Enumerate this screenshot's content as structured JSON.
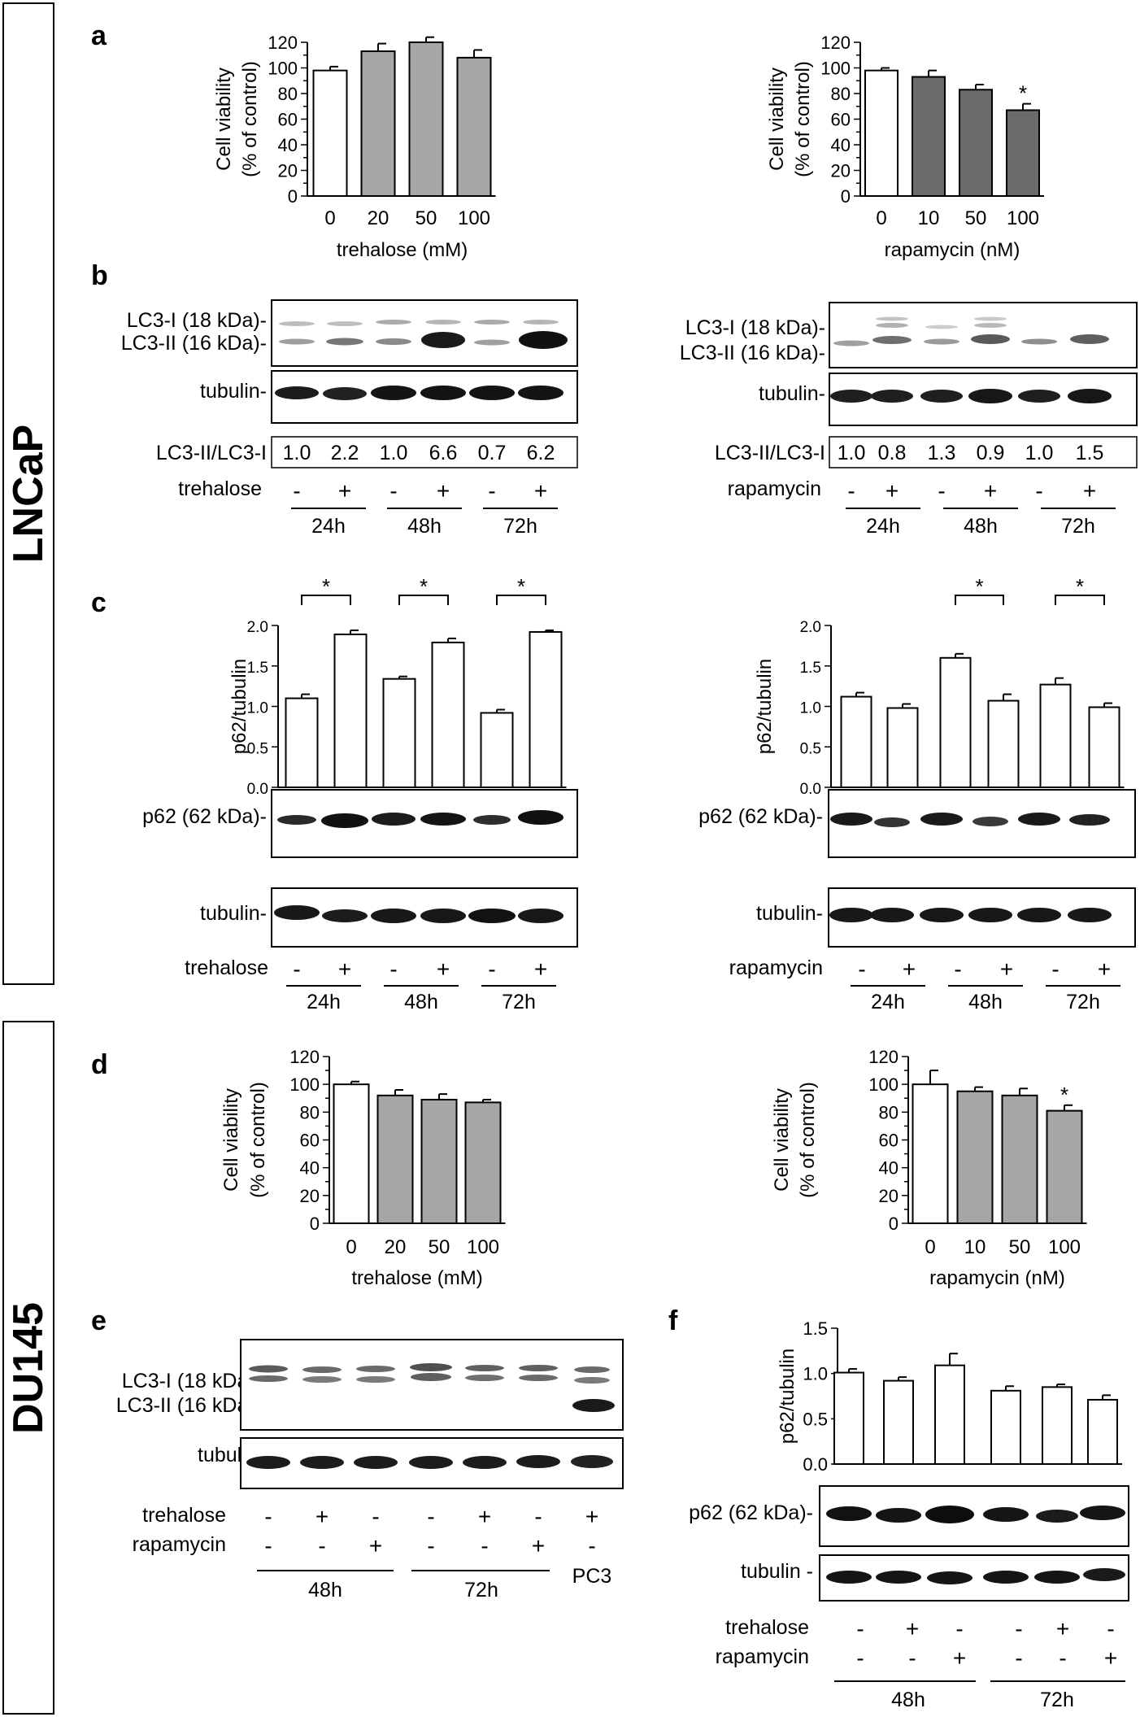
{
  "figure": {
    "rows": {
      "top": "LNCaP",
      "bottom": "DU145"
    },
    "panels": {
      "a": "a",
      "b": "b",
      "c": "c",
      "d": "d",
      "e": "e",
      "f": "f"
    },
    "colors": {
      "control_fill": "#ffffff",
      "trehalose_fill": "#a6a6a6",
      "rapamycin_fill_lncap": "#6b6b6b",
      "rapamycin_fill_du145": "#a6a6a6"
    },
    "blot_labels": {
      "lc3_i": "LC3-I  (18 kDa)-",
      "lc3_ii": "LC3-II (16 kDa)-",
      "tubulin": "tubulin-",
      "tubulin_f": "tubulin -",
      "p62": "p62 (62 kDa)-",
      "ratio_label": "LC3-II/LC3-I"
    },
    "treatments": {
      "trehalose": "trehalose",
      "rapamycin": "rapamycin"
    },
    "timepoints": {
      "t24": "24h",
      "t48": "48h",
      "t72": "72h",
      "pc3": "PC3"
    },
    "signs": {
      "minus": "-",
      "plus": "+"
    },
    "sig_marker": "*",
    "ratios": {
      "b_trehalose": [
        "1.0",
        "2.2",
        "1.0",
        "6.6",
        "0.7",
        "6.2"
      ],
      "b_rapamycin": [
        "1.0",
        "0.8",
        "1.3",
        "0.9",
        "1.0",
        "1.5"
      ]
    }
  },
  "chart_data": [
    {
      "id": "a-trehalose",
      "panel": "a",
      "type": "bar",
      "title": "",
      "xlabel": "trehalose (mM)",
      "ylabel_1": "Cell viability",
      "ylabel_2": "(% of control)",
      "categories": [
        "0",
        "20",
        "50",
        "100"
      ],
      "values": [
        98,
        113,
        120,
        108
      ],
      "errors": [
        3,
        6,
        4,
        6
      ],
      "ylim": [
        0,
        120
      ],
      "yticks": [
        "0",
        "10",
        "20",
        "30",
        "40",
        "50",
        "60",
        "70",
        "80",
        "90",
        "100",
        "110",
        "120"
      ],
      "tick_precision": 0,
      "significant": []
    },
    {
      "id": "a-rapamycin",
      "panel": "a",
      "type": "bar",
      "title": "",
      "xlabel": "rapamycin (nM)",
      "ylabel_1": "Cell viability",
      "ylabel_2": "(% of control)",
      "categories": [
        "0",
        "10",
        "50",
        "100"
      ],
      "values": [
        98,
        93,
        83,
        67
      ],
      "errors": [
        2,
        5,
        4,
        5
      ],
      "ylim": [
        0,
        120
      ],
      "yticks": [
        "0",
        "10",
        "20",
        "30",
        "40",
        "50",
        "60",
        "70",
        "80",
        "90",
        "100",
        "110",
        "120"
      ],
      "tick_precision": 0,
      "significant": [
        3
      ]
    },
    {
      "id": "c-trehalose",
      "panel": "c",
      "type": "bar",
      "title": "",
      "xlabel": "",
      "ylabel_1": "p62/tubulin",
      "ylabel_2": "",
      "categories": [
        "24h -",
        "24h +",
        "48h -",
        "48h +",
        "72h -",
        "72h +"
      ],
      "values": [
        1.1,
        1.89,
        1.34,
        1.79,
        0.92,
        1.92
      ],
      "errors": [
        0.05,
        0.05,
        0.03,
        0.05,
        0.04,
        0.02
      ],
      "ylim": [
        0,
        2.0
      ],
      "yticks": [
        "0.0",
        "0.5",
        "1.0",
        "1.5",
        "2.0"
      ],
      "tick_precision": 1,
      "comparisons": [
        [
          0,
          1
        ],
        [
          2,
          3
        ],
        [
          4,
          5
        ]
      ]
    },
    {
      "id": "c-rapamycin",
      "panel": "c",
      "type": "bar",
      "title": "",
      "xlabel": "",
      "ylabel_1": "p62/tubulin",
      "ylabel_2": "",
      "categories": [
        "24h -",
        "24h +",
        "48h -",
        "48h +",
        "72h -",
        "72h +"
      ],
      "values": [
        1.12,
        0.98,
        1.6,
        1.07,
        1.27,
        0.99
      ],
      "errors": [
        0.05,
        0.05,
        0.05,
        0.08,
        0.08,
        0.05
      ],
      "ylim": [
        0,
        2.0
      ],
      "yticks": [
        "0.0",
        "0.5",
        "1.0",
        "1.5",
        "2.0"
      ],
      "tick_precision": 1,
      "comparisons": [
        [
          2,
          3
        ],
        [
          4,
          5
        ]
      ]
    },
    {
      "id": "d-trehalose",
      "panel": "d",
      "type": "bar",
      "title": "",
      "xlabel": "trehalose (mM)",
      "ylabel_1": "Cell viability",
      "ylabel_2": "(% of control)",
      "categories": [
        "0",
        "20",
        "50",
        "100"
      ],
      "values": [
        100,
        92,
        89,
        87
      ],
      "errors": [
        2,
        4,
        4,
        2
      ],
      "ylim": [
        0,
        120
      ],
      "yticks": [
        "0",
        "10",
        "20",
        "30",
        "40",
        "50",
        "60",
        "70",
        "80",
        "90",
        "100",
        "110",
        "120"
      ],
      "tick_precision": 0,
      "significant": []
    },
    {
      "id": "d-rapamycin",
      "panel": "d",
      "type": "bar",
      "title": "",
      "xlabel": "rapamycin (nM)",
      "ylabel_1": "Cell viability",
      "ylabel_2": "(% of control)",
      "categories": [
        "0",
        "10",
        "50",
        "100"
      ],
      "values": [
        100,
        95,
        92,
        81
      ],
      "errors": [
        10,
        3,
        5,
        4
      ],
      "ylim": [
        0,
        120
      ],
      "yticks": [
        "0",
        "10",
        "20",
        "30",
        "40",
        "50",
        "60",
        "70",
        "80",
        "90",
        "100",
        "110",
        "120"
      ],
      "tick_precision": 0,
      "significant": [
        3
      ]
    },
    {
      "id": "f-p62",
      "panel": "f",
      "type": "bar",
      "title": "",
      "xlabel": "",
      "ylabel_1": "p62/tubulin",
      "ylabel_2": "",
      "categories": [
        "48h -",
        "48h trehalose",
        "48h rapamycin",
        "72h -",
        "72h trehalose",
        "72h rapamycin"
      ],
      "values": [
        1.01,
        0.92,
        1.09,
        0.81,
        0.85,
        0.71
      ],
      "errors": [
        0.04,
        0.04,
        0.13,
        0.05,
        0.03,
        0.05
      ],
      "ylim": [
        0,
        1.5
      ],
      "yticks": [
        "0.0",
        "0.5",
        "1.0",
        "1.5"
      ],
      "tick_precision": 1,
      "comparisons": []
    }
  ]
}
